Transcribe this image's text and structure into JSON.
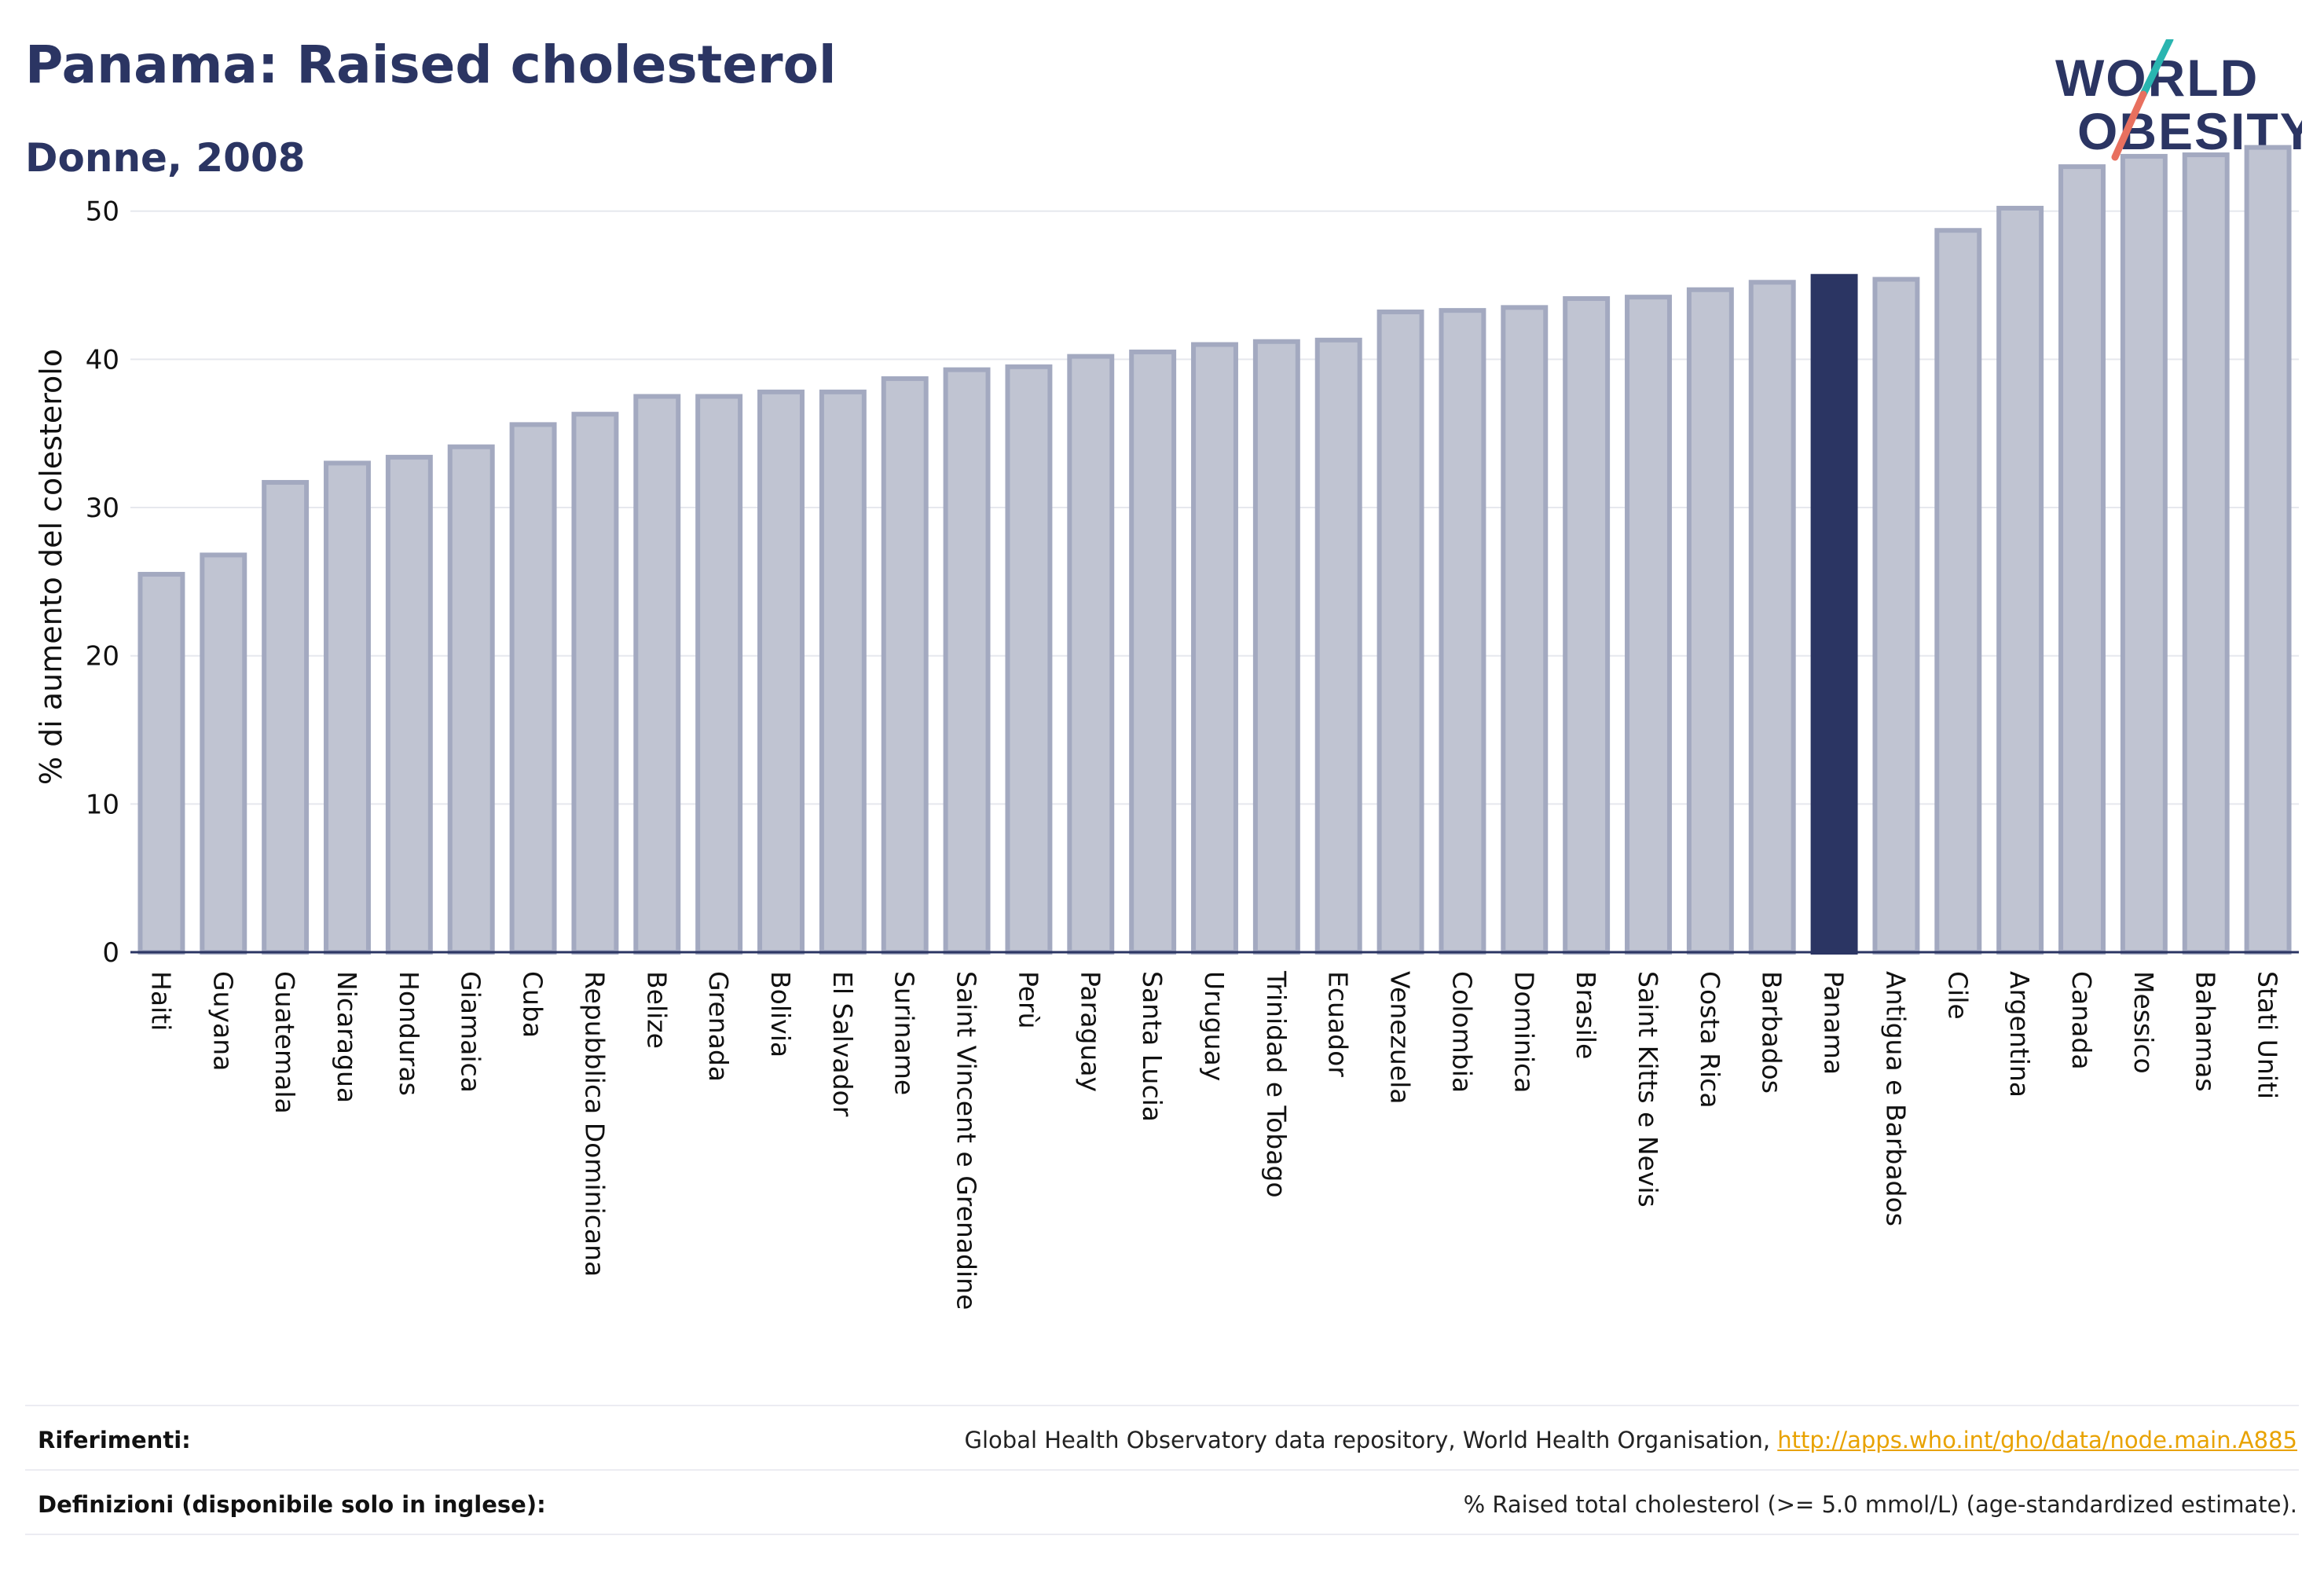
{
  "header": {
    "title": "Panama: Raised cholesterol",
    "subtitle": "Donne, 2008"
  },
  "logo": {
    "line1": "WORLD",
    "line2": "OBESITY"
  },
  "colors": {
    "bar": "#c0c4d2",
    "bar_border": "#a3a9c0",
    "highlight": "#2b3563",
    "grid": "#e6e8ee",
    "text": "#2b3563",
    "link": "#e8a200"
  },
  "chart_data": {
    "type": "bar",
    "ylabel": "% di aumento del colesterolo",
    "ylim": [
      0,
      55
    ],
    "yticks": [
      0,
      10,
      20,
      30,
      40,
      50
    ],
    "grid": true,
    "highlight": "Panama",
    "categories": [
      "Haiti",
      "Guyana",
      "Guatemala",
      "Nicaragua",
      "Honduras",
      "Giamaica",
      "Cuba",
      "Repubblica Dominicana",
      "Belize",
      "Grenada",
      "Bolivia",
      "El Salvador",
      "Suriname",
      "Saint Vincent e Grenadine",
      "Perù",
      "Paraguay",
      "Santa Lucia",
      "Uruguay",
      "Trinidad e Tobago",
      "Ecuador",
      "Venezuela",
      "Colombia",
      "Dominica",
      "Brasile",
      "Saint Kitts e Nevis",
      "Costa Rica",
      "Barbados",
      "Panama",
      "Antigua e Barbados",
      "Cile",
      "Argentina",
      "Canada",
      "Messico",
      "Bahamas",
      "Stati Uniti"
    ],
    "values": [
      25.5,
      26.8,
      31.7,
      33.0,
      33.4,
      34.1,
      35.6,
      36.3,
      37.5,
      37.5,
      37.8,
      37.8,
      38.7,
      39.3,
      39.5,
      40.2,
      40.5,
      41.0,
      41.2,
      41.3,
      43.2,
      43.3,
      43.5,
      44.1,
      44.2,
      44.7,
      45.2,
      45.6,
      45.4,
      48.7,
      50.2,
      53.0,
      53.7,
      53.8,
      54.3
    ]
  },
  "footer": {
    "references_label": "Riferimenti:",
    "references_text": "Global Health Observatory data repository, World Health Organisation, ",
    "references_link": "http://apps.who.int/gho/data/node.main.A885",
    "definitions_label": "Definizioni (disponibile solo in inglese):",
    "definitions_text": "% Raised total cholesterol (>= 5.0 mmol/L) (age-standardized estimate)."
  }
}
